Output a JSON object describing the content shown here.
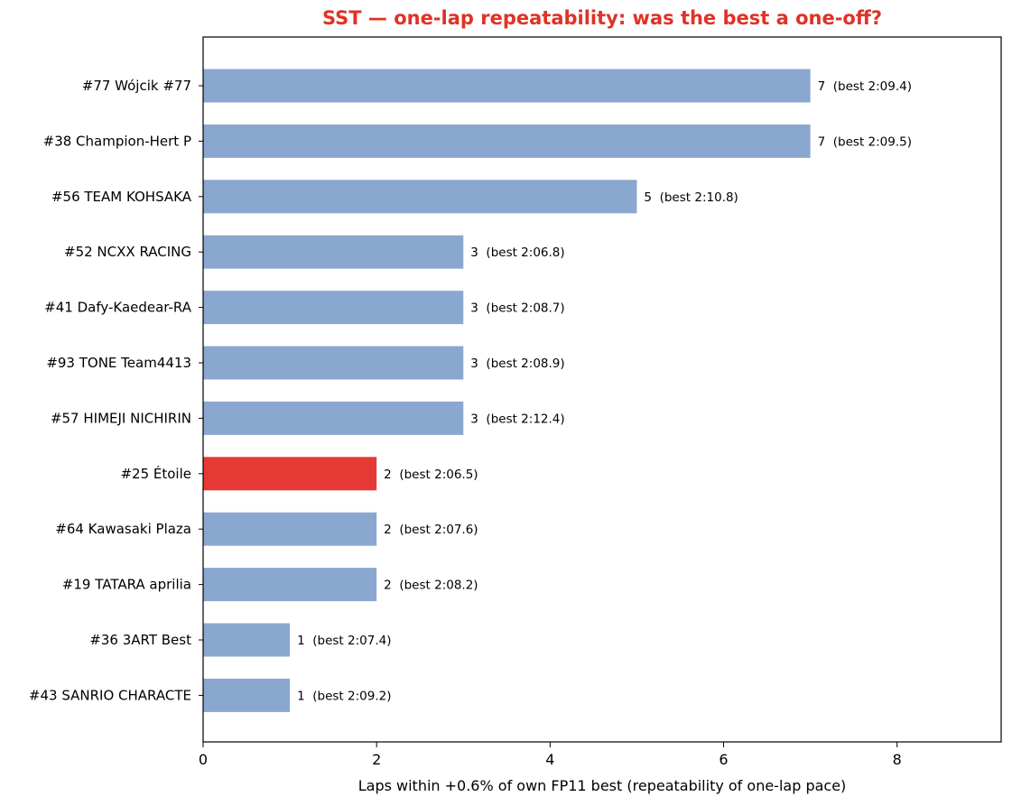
{
  "chart_data": {
    "type": "bar",
    "orientation": "horizontal",
    "title": "SST — one-lap repeatability: was the best a one-off?",
    "xlabel": "Laps within +0.6% of own FP11 best (repeatability of one-lap pace)",
    "ylabel": "",
    "xlim": [
      0,
      9.2
    ],
    "xticks": [
      0,
      2,
      4,
      6,
      8
    ],
    "grid": false,
    "colors": {
      "default": "#8aa7cf",
      "highlight": "#e53935",
      "title": "#e03226"
    },
    "bars": [
      {
        "category": "#77 Wójcik #77",
        "value": 7,
        "annotation": "7  (best 2:09.4)",
        "highlight": false
      },
      {
        "category": "#38 Champion-Hert P",
        "value": 7,
        "annotation": "7  (best 2:09.5)",
        "highlight": false
      },
      {
        "category": "#56 TEAM KOHSAKA",
        "value": 5,
        "annotation": "5  (best 2:10.8)",
        "highlight": false
      },
      {
        "category": "#52 NCXX RACING",
        "value": 3,
        "annotation": "3  (best 2:06.8)",
        "highlight": false
      },
      {
        "category": "#41 Dafy-Kaedear-RA",
        "value": 3,
        "annotation": "3  (best 2:08.7)",
        "highlight": false
      },
      {
        "category": "#93 TONE Team4413",
        "value": 3,
        "annotation": "3  (best 2:08.9)",
        "highlight": false
      },
      {
        "category": "#57 HIMEJI NICHIRIN",
        "value": 3,
        "annotation": "3  (best 2:12.4)",
        "highlight": false
      },
      {
        "category": "#25 Étoile",
        "value": 2,
        "annotation": "2  (best 2:06.5)",
        "highlight": true
      },
      {
        "category": "#64 Kawasaki Plaza",
        "value": 2,
        "annotation": "2  (best 2:07.6)",
        "highlight": false
      },
      {
        "category": "#19 TATARA aprilia",
        "value": 2,
        "annotation": "2  (best 2:08.2)",
        "highlight": false
      },
      {
        "category": "#36 3ART Best",
        "value": 1,
        "annotation": "1  (best 2:07.4)",
        "highlight": false
      },
      {
        "category": "#43 SANRIO CHARACTE",
        "value": 1,
        "annotation": "1  (best 2:09.2)",
        "highlight": false
      }
    ]
  }
}
